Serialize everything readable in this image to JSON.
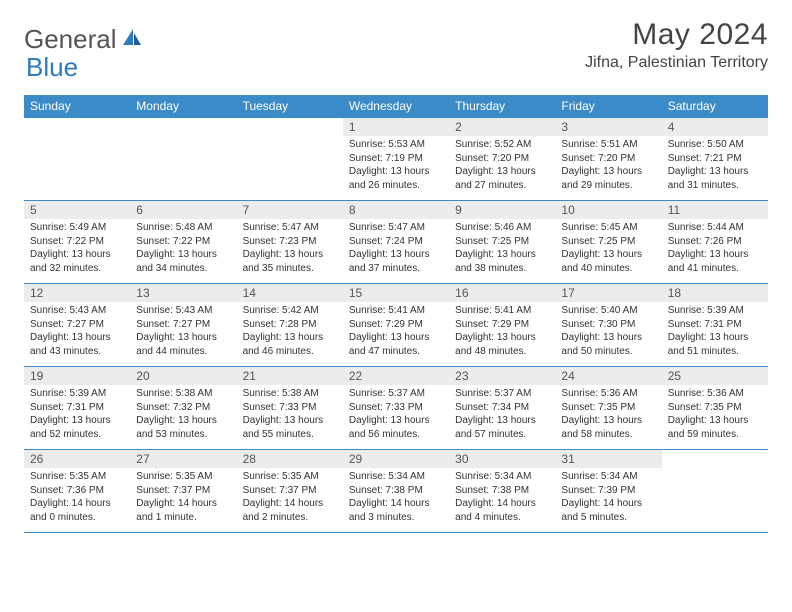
{
  "brand": {
    "part1": "General",
    "part2": "Blue"
  },
  "title": "May 2024",
  "location": "Jifna, Palestinian Territory",
  "colors": {
    "header_bg": "#3b8bc8",
    "header_text": "#ffffff",
    "daynum_bg": "#ececec",
    "border": "#3b8bc8",
    "text": "#333333",
    "title_text": "#444444",
    "logo_gray": "#555555",
    "logo_blue": "#2f7bbf"
  },
  "weekdays": [
    "Sunday",
    "Monday",
    "Tuesday",
    "Wednesday",
    "Thursday",
    "Friday",
    "Saturday"
  ],
  "weeks": [
    [
      {
        "n": "",
        "sr": "",
        "ss": "",
        "dl": ""
      },
      {
        "n": "",
        "sr": "",
        "ss": "",
        "dl": ""
      },
      {
        "n": "",
        "sr": "",
        "ss": "",
        "dl": ""
      },
      {
        "n": "1",
        "sr": "Sunrise: 5:53 AM",
        "ss": "Sunset: 7:19 PM",
        "dl": "Daylight: 13 hours and 26 minutes."
      },
      {
        "n": "2",
        "sr": "Sunrise: 5:52 AM",
        "ss": "Sunset: 7:20 PM",
        "dl": "Daylight: 13 hours and 27 minutes."
      },
      {
        "n": "3",
        "sr": "Sunrise: 5:51 AM",
        "ss": "Sunset: 7:20 PM",
        "dl": "Daylight: 13 hours and 29 minutes."
      },
      {
        "n": "4",
        "sr": "Sunrise: 5:50 AM",
        "ss": "Sunset: 7:21 PM",
        "dl": "Daylight: 13 hours and 31 minutes."
      }
    ],
    [
      {
        "n": "5",
        "sr": "Sunrise: 5:49 AM",
        "ss": "Sunset: 7:22 PM",
        "dl": "Daylight: 13 hours and 32 minutes."
      },
      {
        "n": "6",
        "sr": "Sunrise: 5:48 AM",
        "ss": "Sunset: 7:22 PM",
        "dl": "Daylight: 13 hours and 34 minutes."
      },
      {
        "n": "7",
        "sr": "Sunrise: 5:47 AM",
        "ss": "Sunset: 7:23 PM",
        "dl": "Daylight: 13 hours and 35 minutes."
      },
      {
        "n": "8",
        "sr": "Sunrise: 5:47 AM",
        "ss": "Sunset: 7:24 PM",
        "dl": "Daylight: 13 hours and 37 minutes."
      },
      {
        "n": "9",
        "sr": "Sunrise: 5:46 AM",
        "ss": "Sunset: 7:25 PM",
        "dl": "Daylight: 13 hours and 38 minutes."
      },
      {
        "n": "10",
        "sr": "Sunrise: 5:45 AM",
        "ss": "Sunset: 7:25 PM",
        "dl": "Daylight: 13 hours and 40 minutes."
      },
      {
        "n": "11",
        "sr": "Sunrise: 5:44 AM",
        "ss": "Sunset: 7:26 PM",
        "dl": "Daylight: 13 hours and 41 minutes."
      }
    ],
    [
      {
        "n": "12",
        "sr": "Sunrise: 5:43 AM",
        "ss": "Sunset: 7:27 PM",
        "dl": "Daylight: 13 hours and 43 minutes."
      },
      {
        "n": "13",
        "sr": "Sunrise: 5:43 AM",
        "ss": "Sunset: 7:27 PM",
        "dl": "Daylight: 13 hours and 44 minutes."
      },
      {
        "n": "14",
        "sr": "Sunrise: 5:42 AM",
        "ss": "Sunset: 7:28 PM",
        "dl": "Daylight: 13 hours and 46 minutes."
      },
      {
        "n": "15",
        "sr": "Sunrise: 5:41 AM",
        "ss": "Sunset: 7:29 PM",
        "dl": "Daylight: 13 hours and 47 minutes."
      },
      {
        "n": "16",
        "sr": "Sunrise: 5:41 AM",
        "ss": "Sunset: 7:29 PM",
        "dl": "Daylight: 13 hours and 48 minutes."
      },
      {
        "n": "17",
        "sr": "Sunrise: 5:40 AM",
        "ss": "Sunset: 7:30 PM",
        "dl": "Daylight: 13 hours and 50 minutes."
      },
      {
        "n": "18",
        "sr": "Sunrise: 5:39 AM",
        "ss": "Sunset: 7:31 PM",
        "dl": "Daylight: 13 hours and 51 minutes."
      }
    ],
    [
      {
        "n": "19",
        "sr": "Sunrise: 5:39 AM",
        "ss": "Sunset: 7:31 PM",
        "dl": "Daylight: 13 hours and 52 minutes."
      },
      {
        "n": "20",
        "sr": "Sunrise: 5:38 AM",
        "ss": "Sunset: 7:32 PM",
        "dl": "Daylight: 13 hours and 53 minutes."
      },
      {
        "n": "21",
        "sr": "Sunrise: 5:38 AM",
        "ss": "Sunset: 7:33 PM",
        "dl": "Daylight: 13 hours and 55 minutes."
      },
      {
        "n": "22",
        "sr": "Sunrise: 5:37 AM",
        "ss": "Sunset: 7:33 PM",
        "dl": "Daylight: 13 hours and 56 minutes."
      },
      {
        "n": "23",
        "sr": "Sunrise: 5:37 AM",
        "ss": "Sunset: 7:34 PM",
        "dl": "Daylight: 13 hours and 57 minutes."
      },
      {
        "n": "24",
        "sr": "Sunrise: 5:36 AM",
        "ss": "Sunset: 7:35 PM",
        "dl": "Daylight: 13 hours and 58 minutes."
      },
      {
        "n": "25",
        "sr": "Sunrise: 5:36 AM",
        "ss": "Sunset: 7:35 PM",
        "dl": "Daylight: 13 hours and 59 minutes."
      }
    ],
    [
      {
        "n": "26",
        "sr": "Sunrise: 5:35 AM",
        "ss": "Sunset: 7:36 PM",
        "dl": "Daylight: 14 hours and 0 minutes."
      },
      {
        "n": "27",
        "sr": "Sunrise: 5:35 AM",
        "ss": "Sunset: 7:37 PM",
        "dl": "Daylight: 14 hours and 1 minute."
      },
      {
        "n": "28",
        "sr": "Sunrise: 5:35 AM",
        "ss": "Sunset: 7:37 PM",
        "dl": "Daylight: 14 hours and 2 minutes."
      },
      {
        "n": "29",
        "sr": "Sunrise: 5:34 AM",
        "ss": "Sunset: 7:38 PM",
        "dl": "Daylight: 14 hours and 3 minutes."
      },
      {
        "n": "30",
        "sr": "Sunrise: 5:34 AM",
        "ss": "Sunset: 7:38 PM",
        "dl": "Daylight: 14 hours and 4 minutes."
      },
      {
        "n": "31",
        "sr": "Sunrise: 5:34 AM",
        "ss": "Sunset: 7:39 PM",
        "dl": "Daylight: 14 hours and 5 minutes."
      },
      {
        "n": "",
        "sr": "",
        "ss": "",
        "dl": ""
      }
    ]
  ]
}
